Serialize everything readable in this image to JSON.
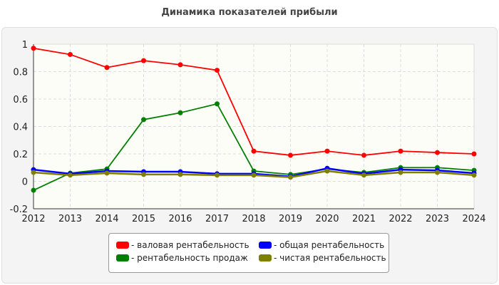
{
  "chart_data": {
    "type": "line",
    "title": "Динамика показателей прибыли",
    "x": [
      "2012",
      "2013",
      "2014",
      "2015",
      "2016",
      "2017",
      "2018",
      "2019",
      "2020",
      "2021",
      "2022",
      "2023",
      "2024"
    ],
    "ylim": [
      -0.2,
      1
    ],
    "yticks": [
      "-0.2",
      "0",
      "0.2",
      "0.4",
      "0.6",
      "0.8",
      "1"
    ],
    "grid": true,
    "legend_position": "bottom",
    "series": [
      {
        "name": "- валовая рентабельность",
        "color": "#ff0000",
        "values": [
          0.97,
          0.925,
          0.83,
          0.88,
          0.85,
          0.81,
          0.22,
          0.19,
          0.22,
          0.19,
          0.22,
          0.21,
          0.2
        ]
      },
      {
        "name": "- общая рентабельность",
        "color": "#0000ff",
        "values": [
          0.085,
          0.055,
          0.075,
          0.07,
          0.07,
          0.055,
          0.055,
          0.035,
          0.095,
          0.055,
          0.085,
          0.08,
          0.06
        ]
      },
      {
        "name": "- рентабельность продаж",
        "color": "#008000",
        "values": [
          -0.065,
          0.06,
          0.09,
          0.45,
          0.5,
          0.565,
          0.075,
          0.05,
          0.09,
          0.065,
          0.1,
          0.1,
          0.08
        ]
      },
      {
        "name": "- чистая рентабельность",
        "color": "#808000",
        "values": [
          0.065,
          0.045,
          0.06,
          0.05,
          0.05,
          0.045,
          0.045,
          0.03,
          0.075,
          0.045,
          0.065,
          0.065,
          0.045
        ]
      }
    ]
  }
}
